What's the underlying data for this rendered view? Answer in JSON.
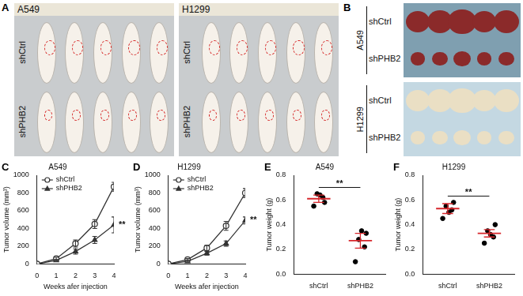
{
  "panels": [
    {
      "label": "A",
      "photos": [
        {
          "title": "A549",
          "groups": [
            "shCtrl",
            "shPHB2"
          ],
          "count": 5
        },
        {
          "title": "H1299",
          "groups": [
            "shCtrl",
            "shPHB2"
          ],
          "count": 5
        }
      ]
    },
    {
      "label": "B",
      "photos": [
        {
          "title": "A549",
          "groups": [
            "shCtrl",
            "shPHB2"
          ],
          "count": 5
        },
        {
          "title": "H1299",
          "groups": [
            "shCtrl",
            "shPHB2"
          ],
          "count": 5
        }
      ]
    }
  ],
  "chart_data": [
    {
      "panel": "C",
      "type": "line",
      "title": "A549",
      "xlabel": "Weeks afer injection",
      "ylabel": "Tumor volume (mm³)",
      "x": [
        0,
        1,
        2,
        3,
        4
      ],
      "xlim": [
        0,
        4
      ],
      "xticks": [
        0,
        1,
        2,
        3,
        4
      ],
      "ylim": [
        0,
        1000
      ],
      "yticks": [
        0,
        200,
        400,
        600,
        800,
        1000
      ],
      "grid": false,
      "legend": "upper left",
      "annotation": "**",
      "series": [
        {
          "name": "shCtrl",
          "color": "#333333",
          "marker": "open-circle",
          "values": [
            0,
            60,
            230,
            450,
            870
          ],
          "error": [
            0,
            15,
            40,
            50,
            50
          ]
        },
        {
          "name": "shPHB2",
          "color": "#333333",
          "marker": "triangle",
          "values": [
            0,
            40,
            140,
            270,
            440
          ],
          "error": [
            0,
            10,
            30,
            40,
            90
          ]
        }
      ]
    },
    {
      "panel": "D",
      "type": "line",
      "title": "H1299",
      "xlabel": "Weeks afer injection",
      "ylabel": "Tumor volume (mm³)",
      "x": [
        0,
        1,
        2,
        3,
        4
      ],
      "xlim": [
        0,
        4
      ],
      "xticks": [
        0,
        1,
        2,
        3,
        4
      ],
      "ylim": [
        0,
        1000
      ],
      "yticks": [
        0,
        200,
        400,
        600,
        800,
        1000
      ],
      "grid": false,
      "legend": "upper left",
      "annotation": "**",
      "series": [
        {
          "name": "shCtrl",
          "color": "#333333",
          "marker": "open-circle",
          "values": [
            0,
            50,
            180,
            430,
            800
          ],
          "error": [
            0,
            10,
            30,
            50,
            50
          ]
        },
        {
          "name": "shPHB2",
          "color": "#333333",
          "marker": "triangle",
          "values": [
            0,
            30,
            120,
            230,
            490
          ],
          "error": [
            0,
            10,
            20,
            30,
            40
          ]
        }
      ]
    },
    {
      "panel": "E",
      "type": "strip",
      "title": "A549",
      "ylabel": "Tumor weight (g)",
      "categories": [
        "shCtrl",
        "shPHB2"
      ],
      "values": [
        [
          0.55,
          0.62,
          0.65,
          0.58,
          0.64
        ],
        [
          0.1,
          0.22,
          0.28,
          0.33,
          0.35
        ]
      ],
      "mean": [
        0.61,
        0.27
      ],
      "error": [
        0.03,
        0.06
      ],
      "color": "#000000",
      "ylim": [
        0,
        0.8
      ],
      "yticks": [
        {
          "value": 0,
          "label": "0.0"
        },
        0.2,
        0.4,
        0.6,
        0.8
      ],
      "grid": false,
      "annotation": "**"
    },
    {
      "panel": "F",
      "type": "strip",
      "title": "H1299",
      "ylabel": "Tumor weight (g)",
      "categories": [
        "shCtrl",
        "shPHB2"
      ],
      "values": [
        [
          0.45,
          0.52,
          0.55,
          0.58,
          0.5
        ],
        [
          0.25,
          0.3,
          0.35,
          0.4,
          0.32
        ]
      ],
      "mean": [
        0.53,
        0.33
      ],
      "error": [
        0.04,
        0.03
      ],
      "color": "#000000",
      "ylim": [
        0,
        0.8
      ],
      "yticks": [
        {
          "value": 0,
          "label": "0.0"
        },
        0.2,
        0.4,
        0.6,
        0.8
      ],
      "grid": false,
      "annotation": "**"
    }
  ]
}
